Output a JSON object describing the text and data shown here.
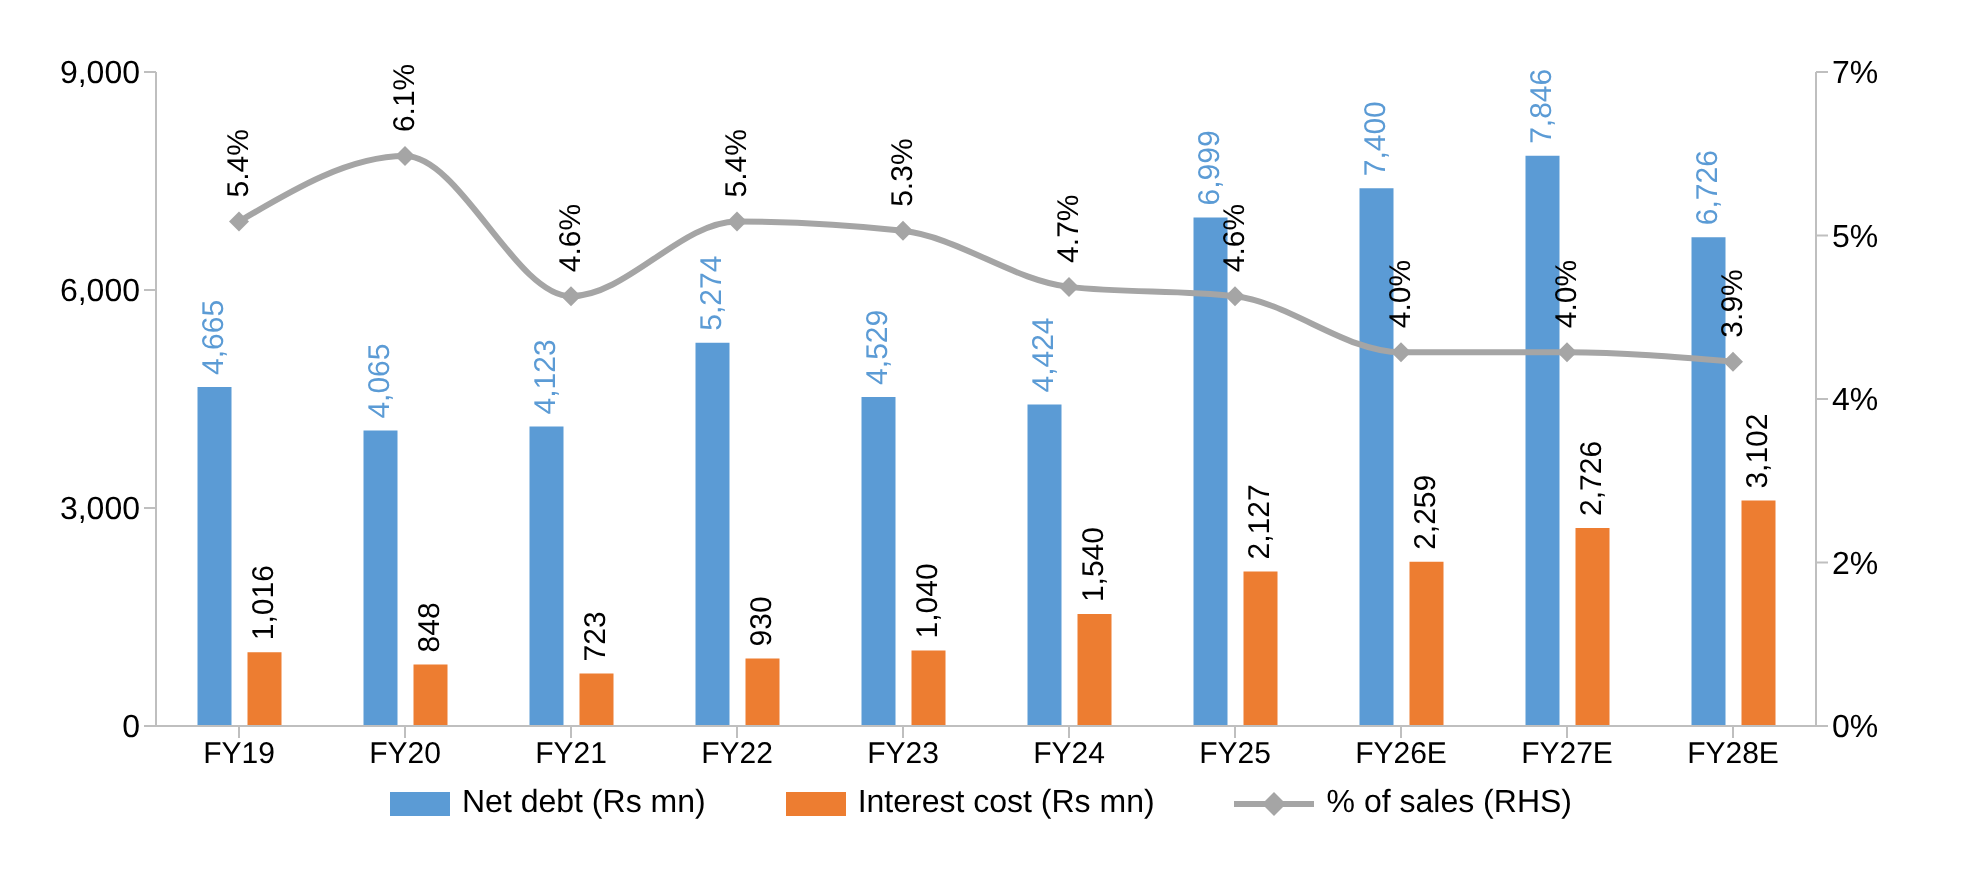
{
  "chart_data": {
    "type": "bar",
    "categories": [
      "FY19",
      "FY20",
      "FY21",
      "FY22",
      "FY23",
      "FY24",
      "FY25",
      "FY26E",
      "FY27E",
      "FY28E"
    ],
    "series": [
      {
        "name": "Net debt (Rs mn)",
        "color": "#5b9bd5",
        "values": [
          4665,
          4065,
          4123,
          5274,
          4529,
          4424,
          6999,
          7400,
          7846,
          6726
        ],
        "value_labels": [
          "4,665",
          "4,065",
          "4,123",
          "5,274",
          "4,529",
          "4,424",
          "6,999",
          "7,400",
          "7,846",
          "6,726"
        ]
      },
      {
        "name": "Interest cost (Rs mn)",
        "color": "#ed7d31",
        "values": [
          1016,
          848,
          723,
          930,
          1040,
          1540,
          2127,
          2259,
          2726,
          3102
        ],
        "value_labels": [
          "1,016",
          "848",
          "723",
          "930",
          "1,040",
          "1,540",
          "2,127",
          "2,259",
          "2,726",
          "3,102"
        ]
      },
      {
        "name": "% of sales (RHS)",
        "type": "line",
        "axis": "y2",
        "color": "#a5a5a5",
        "values": [
          5.4,
          6.1,
          4.6,
          5.4,
          5.3,
          4.7,
          4.6,
          4.0,
          4.0,
          3.9
        ],
        "value_labels": [
          "5.4%",
          "6.1%",
          "4.6%",
          "5.4%",
          "5.3%",
          "4.7%",
          "4.6%",
          "4.0%",
          "4.0%",
          "3.9%"
        ]
      }
    ],
    "ylim": [
      0,
      9000
    ],
    "yticks": [
      0,
      {
        "value": 3000,
        "label": "3,000"
      },
      {
        "value": 6000,
        "label": "6,000"
      },
      {
        "value": 9000,
        "label": "9,000"
      }
    ],
    "y2lim": [
      0,
      7
    ],
    "y2ticks": [
      {
        "value": 0,
        "label": "0%"
      },
      {
        "value": 1.75,
        "label": "2%"
      },
      {
        "value": 3.5,
        "label": "4%"
      },
      {
        "value": 5.25,
        "label": "5%"
      },
      {
        "value": 7,
        "label": "7%"
      }
    ],
    "marker": "diamond",
    "legend": "bottom"
  }
}
